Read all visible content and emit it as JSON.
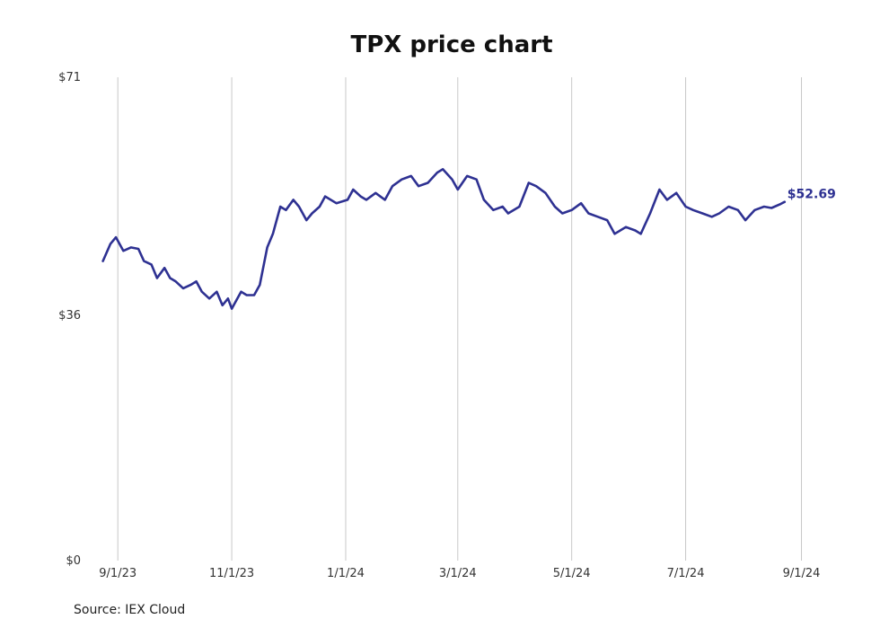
{
  "chart_data": {
    "type": "line",
    "title": "TPX price chart",
    "source": "Source: IEX Cloud",
    "xlabel": "",
    "ylabel": "",
    "grid": {
      "x": true,
      "y": false
    },
    "line_color": "#2e3192",
    "y_ticks": [
      {
        "value": 71,
        "label": "$71"
      },
      {
        "value": 36,
        "label": "$36"
      },
      {
        "value": 0,
        "label": "$0"
      }
    ],
    "x_ticks": [
      {
        "value": "2023-09-01",
        "label": "9/1/23"
      },
      {
        "value": "2023-11-01",
        "label": "11/1/23"
      },
      {
        "value": "2024-01-01",
        "label": "1/1/24"
      },
      {
        "value": "2024-03-01",
        "label": "3/1/24"
      },
      {
        "value": "2024-05-01",
        "label": "5/1/24"
      },
      {
        "value": "2024-07-01",
        "label": "7/1/24"
      },
      {
        "value": "2024-09-01",
        "label": "9/1/24"
      }
    ],
    "ylim": [
      0,
      71
    ],
    "xlim": [
      "2023-08-17",
      "2024-09-07"
    ],
    "last_value_label": "$52.69",
    "series": [
      {
        "x": [
          "2023-08-24",
          "2023-08-28",
          "2023-08-31",
          "2023-09-04",
          "2023-09-08",
          "2023-09-12",
          "2023-09-15",
          "2023-09-19",
          "2023-09-22",
          "2023-09-26",
          "2023-09-29",
          "2023-10-02",
          "2023-10-06",
          "2023-10-10",
          "2023-10-13",
          "2023-10-16",
          "2023-10-20",
          "2023-10-24",
          "2023-10-27",
          "2023-10-30",
          "2023-11-01",
          "2023-11-03",
          "2023-11-06",
          "2023-11-09",
          "2023-11-13",
          "2023-11-16",
          "2023-11-20",
          "2023-11-23",
          "2023-11-27",
          "2023-11-30",
          "2023-12-04",
          "2023-12-07",
          "2023-12-11",
          "2023-12-14",
          "2023-12-18",
          "2023-12-21",
          "2023-12-27",
          "2024-01-02",
          "2024-01-05",
          "2024-01-09",
          "2024-01-12",
          "2024-01-17",
          "2024-01-22",
          "2024-01-26",
          "2024-01-31",
          "2024-02-05",
          "2024-02-09",
          "2024-02-14",
          "2024-02-19",
          "2024-02-22",
          "2024-02-27",
          "2024-03-01",
          "2024-03-06",
          "2024-03-11",
          "2024-03-15",
          "2024-03-20",
          "2024-03-25",
          "2024-03-28",
          "2024-04-03",
          "2024-04-08",
          "2024-04-12",
          "2024-04-17",
          "2024-04-22",
          "2024-04-26",
          "2024-05-01",
          "2024-05-06",
          "2024-05-10",
          "2024-05-15",
          "2024-05-20",
          "2024-05-24",
          "2024-05-30",
          "2024-06-04",
          "2024-06-07",
          "2024-06-12",
          "2024-06-17",
          "2024-06-21",
          "2024-06-26",
          "2024-07-01",
          "2024-07-05",
          "2024-07-10",
          "2024-07-15",
          "2024-07-19",
          "2024-07-24",
          "2024-07-29",
          "2024-08-02",
          "2024-08-07",
          "2024-08-12",
          "2024-08-16",
          "2024-08-21",
          "2024-08-23"
        ],
        "values": [
          44.0,
          46.5,
          47.5,
          45.5,
          46.0,
          45.8,
          44.0,
          43.5,
          41.5,
          43.0,
          41.5,
          41.0,
          40.0,
          40.5,
          41.0,
          39.5,
          38.5,
          39.5,
          37.5,
          38.5,
          37.0,
          38.0,
          39.5,
          39.0,
          39.0,
          40.5,
          46.0,
          48.0,
          52.0,
          51.5,
          53.0,
          52.0,
          50.0,
          51.0,
          52.0,
          53.5,
          52.5,
          53.0,
          54.5,
          53.5,
          53.0,
          54.0,
          53.0,
          55.0,
          56.0,
          56.5,
          55.0,
          55.5,
          57.0,
          57.5,
          56.0,
          54.5,
          56.5,
          56.0,
          53.0,
          51.5,
          52.0,
          51.0,
          52.0,
          55.5,
          55.0,
          54.0,
          52.0,
          51.0,
          51.5,
          52.5,
          51.0,
          50.5,
          50.0,
          48.0,
          49.0,
          48.5,
          48.0,
          51.0,
          54.5,
          53.0,
          54.0,
          52.0,
          51.5,
          51.0,
          50.5,
          51.0,
          52.0,
          51.5,
          50.0,
          51.5,
          52.0,
          51.8,
          52.4,
          52.69
        ]
      }
    ]
  }
}
